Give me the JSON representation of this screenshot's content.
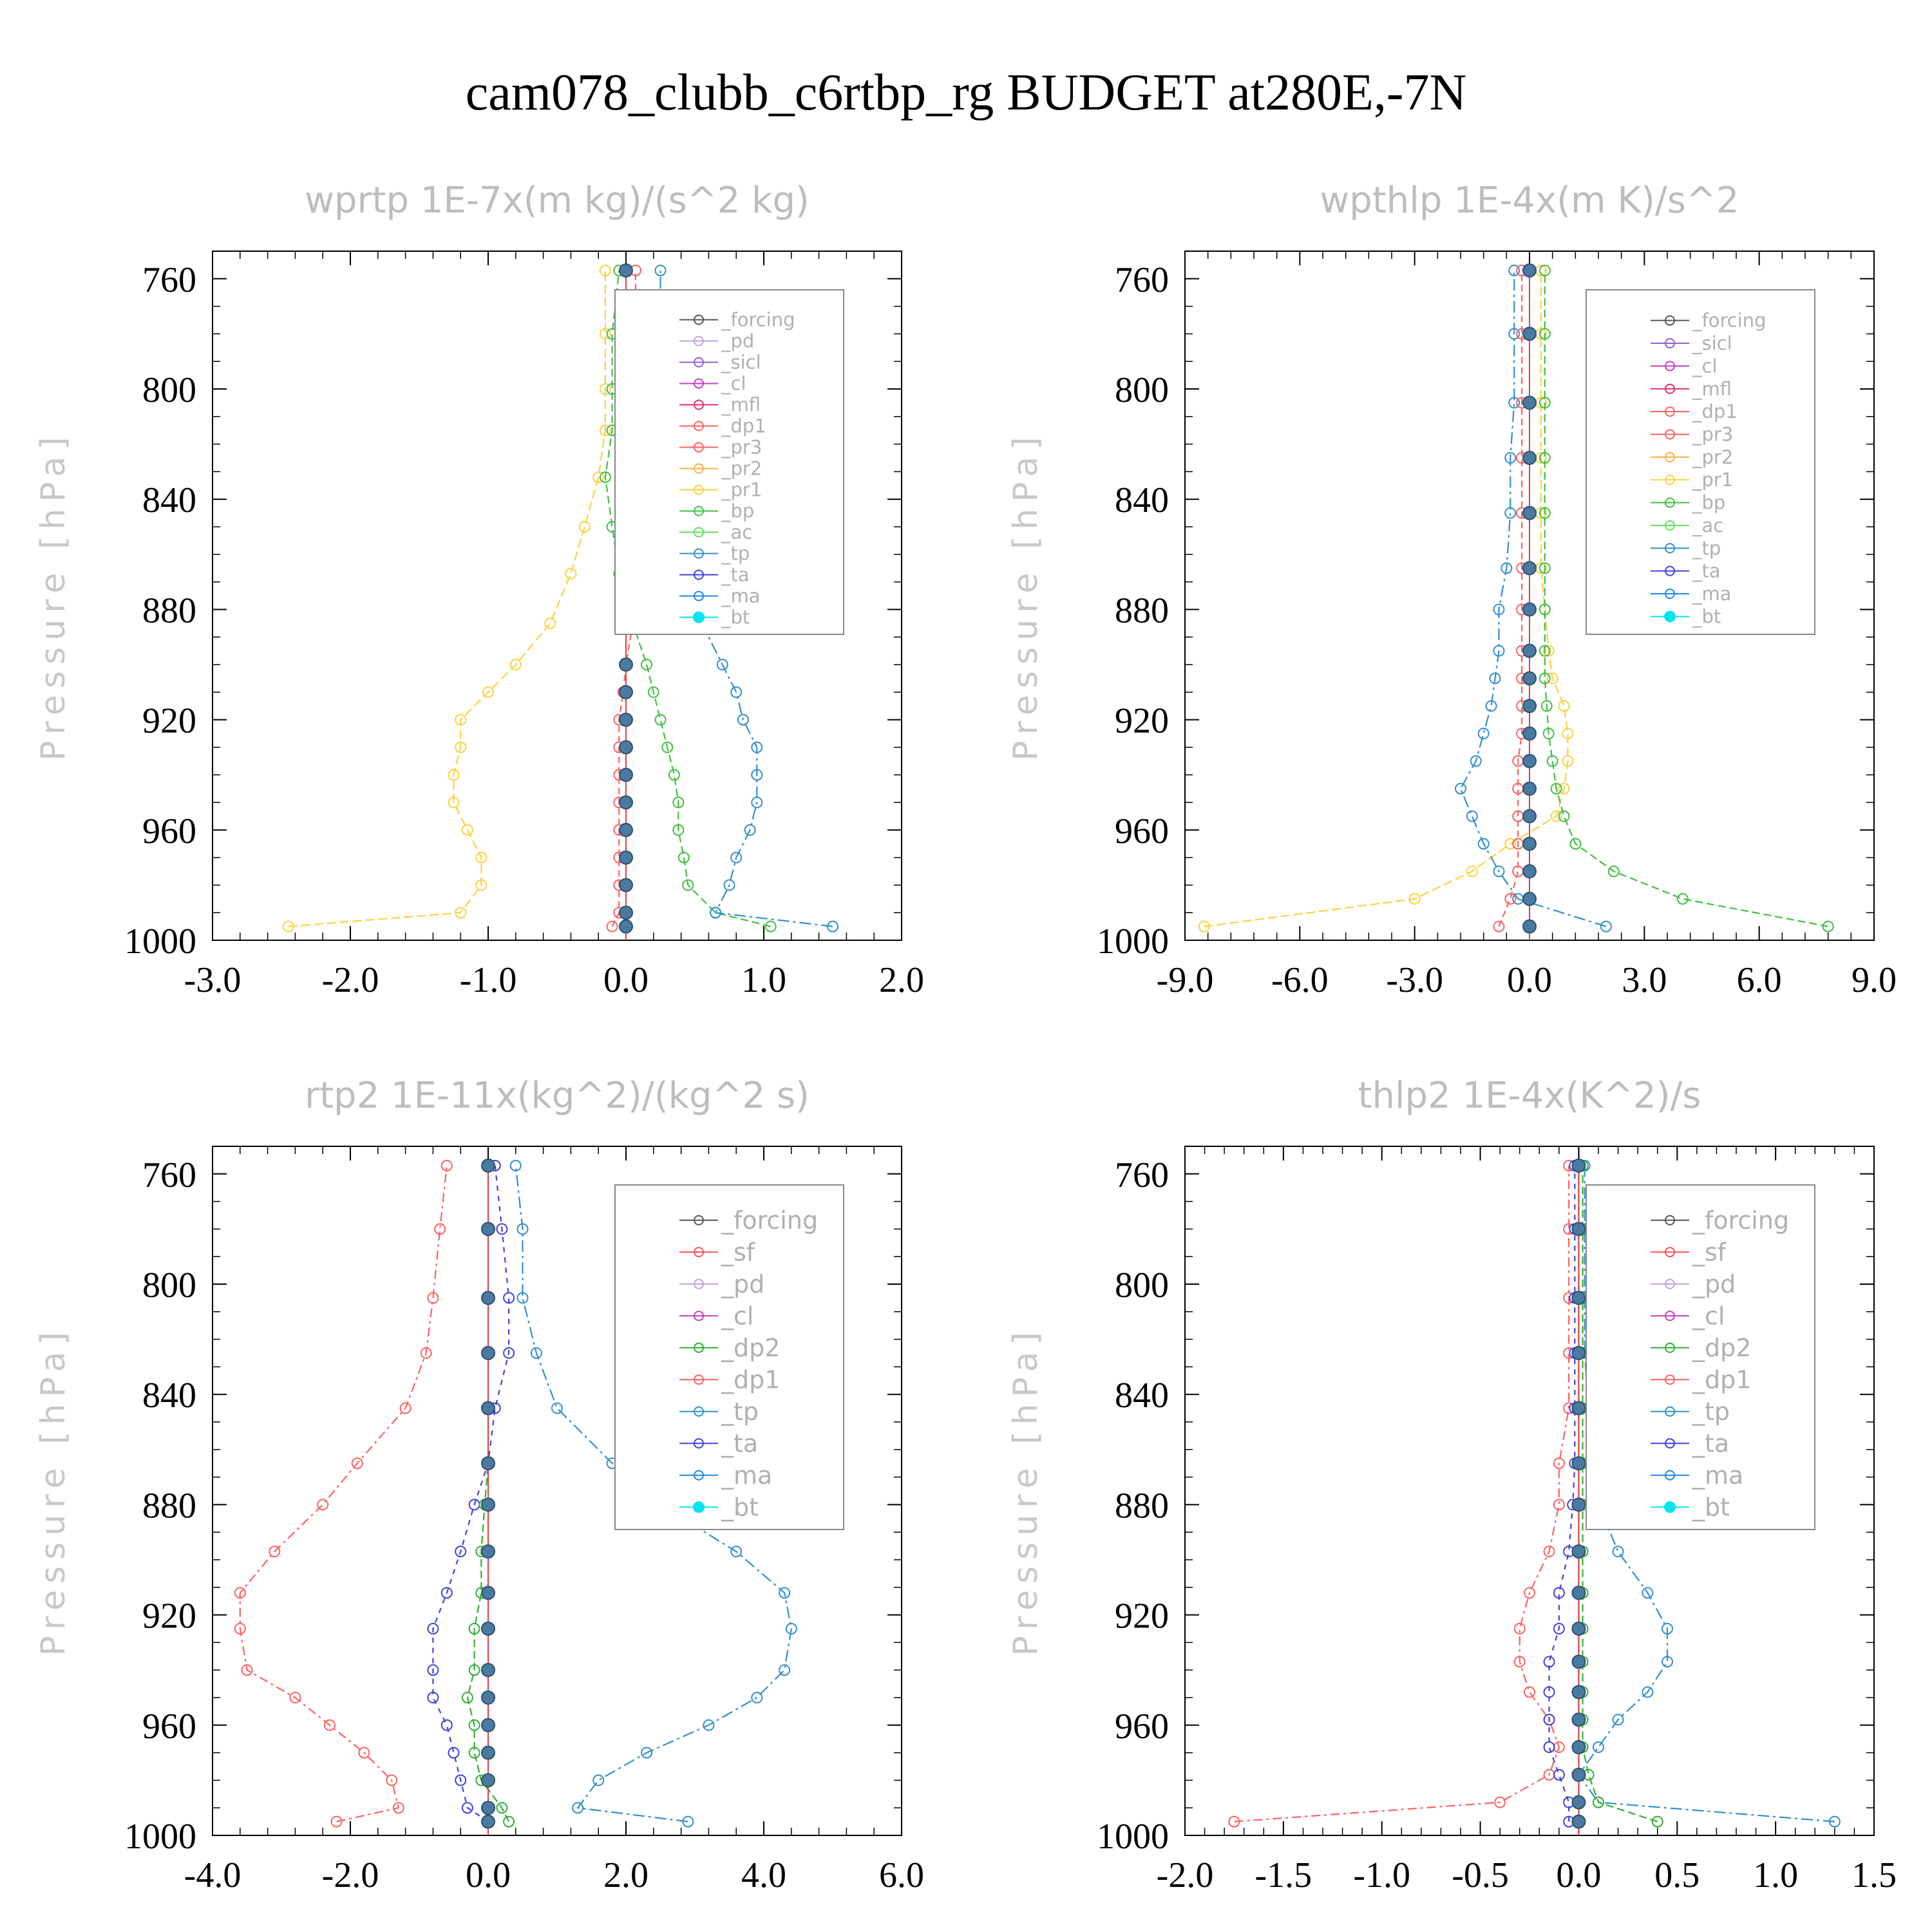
{
  "title": "cam078_clubb_c6rtbp_rg  BUDGET at280E,-7N",
  "colors": {
    "_forcing": "#555555",
    "_pd": "#c8a0e6",
    "_sicl": "#9060d0",
    "_cl": "#c040c0",
    "_mfl": "#e0306a",
    "_dp1": "#ff6060",
    "_pr3": "#ff6060",
    "_pr2": "#ffb040",
    "_pr1": "#ffd040",
    "_bp": "#40c040",
    "_ac": "#60e060",
    "_tp": "#3090d0",
    "_ta": "#4040e0",
    "_ma": "#1e88e5",
    "_bt": "#00e5ee",
    "_sf": "#ff5050",
    "_dp2": "#30b030"
  },
  "chart_data": [
    {
      "type": "line",
      "title": "wprtp  1E-7x(m kg)/(s^2 kg)",
      "ylabel": "Pressure [hPa]",
      "xlim": [
        -3.0,
        2.0
      ],
      "ylim": [
        1000,
        750
      ],
      "xticks": [
        "-3.0",
        "-2.0",
        "-1.0",
        "0.0",
        "1.0",
        "2.0"
      ],
      "yticks": [
        "760",
        "800",
        "840",
        "880",
        "920",
        "960",
        "1000"
      ],
      "legend": [
        "_forcing",
        "_pd",
        "_sicl",
        "_cl",
        "_mfl",
        "_dp1",
        "_pr3",
        "_pr2",
        "_pr1",
        "_bp",
        "_ac",
        "_tp",
        "_ta",
        "_ma",
        "_bt"
      ],
      "y": [
        995,
        990,
        980,
        970,
        960,
        950,
        940,
        930,
        920,
        910,
        900,
        885,
        867,
        850,
        832,
        815,
        800,
        780,
        757
      ],
      "series": [
        {
          "name": "_pr1",
          "values": [
            -2.45,
            -1.2,
            -1.05,
            -1.05,
            -1.15,
            -1.25,
            -1.25,
            -1.2,
            -1.2,
            -1.0,
            -0.8,
            -0.55,
            -0.4,
            -0.3,
            -0.2,
            -0.15,
            -0.15,
            -0.15,
            -0.15
          ]
        },
        {
          "name": "_bp",
          "values": [
            1.05,
            0.65,
            0.45,
            0.42,
            0.38,
            0.38,
            0.35,
            0.3,
            0.25,
            0.2,
            0.15,
            0.05,
            -0.05,
            -0.1,
            -0.15,
            -0.1,
            -0.1,
            -0.1,
            -0.05
          ]
        },
        {
          "name": "_tp",
          "values": [
            1.5,
            0.65,
            0.75,
            0.8,
            0.9,
            0.95,
            0.95,
            0.95,
            0.85,
            0.8,
            0.7,
            0.55,
            0.45,
            0.45,
            0.4,
            0.35,
            0.3,
            0.25,
            0.25
          ]
        },
        {
          "name": "_pr3",
          "values": [
            -0.1,
            -0.05,
            -0.05,
            -0.05,
            -0.05,
            -0.05,
            -0.05,
            -0.05,
            -0.05,
            -0.02,
            0.0,
            0.05,
            0.05,
            0.07,
            0.07,
            0.07,
            0.07,
            0.07,
            0.07
          ]
        },
        {
          "name": "_bt",
          "values": [
            0,
            0,
            0,
            0,
            0,
            0,
            0,
            0,
            0,
            0,
            0,
            0,
            0,
            0,
            0,
            0,
            0,
            0,
            0
          ]
        }
      ]
    },
    {
      "type": "line",
      "title": "wpthlp  1E-4x(m K)/s^2",
      "ylabel": "Pressure [hPa]",
      "xlim": [
        -9.0,
        9.0
      ],
      "ylim": [
        1000,
        750
      ],
      "xticks": [
        "-9.0",
        "-6.0",
        "-3.0",
        "0.0",
        "3.0",
        "6.0",
        "9.0"
      ],
      "yticks": [
        "760",
        "800",
        "840",
        "880",
        "920",
        "960",
        "1000"
      ],
      "legend": [
        "_forcing",
        "_sicl",
        "_cl",
        "_mfl",
        "_dp1",
        "_pr3",
        "_pr2",
        "_pr1",
        "_bp",
        "_ac",
        "_tp",
        "_ta",
        "_ma",
        "_bt"
      ],
      "y": [
        995,
        985,
        975,
        965,
        955,
        945,
        935,
        925,
        915,
        905,
        895,
        880,
        865,
        845,
        825,
        805,
        780,
        757
      ],
      "series": [
        {
          "name": "_pr1",
          "values": [
            -8.5,
            -3.0,
            -1.5,
            -0.5,
            0.7,
            0.9,
            1.0,
            1.0,
            0.9,
            0.6,
            0.5,
            0.4,
            0.3,
            0.3,
            0.3,
            0.3,
            0.3,
            0.3
          ]
        },
        {
          "name": "_bp",
          "values": [
            7.8,
            4.0,
            2.2,
            1.2,
            0.9,
            0.7,
            0.6,
            0.5,
            0.45,
            0.4,
            0.4,
            0.4,
            0.4,
            0.4,
            0.4,
            0.4,
            0.4,
            0.4
          ]
        },
        {
          "name": "_tp",
          "values": [
            2.0,
            -0.3,
            -0.8,
            -1.2,
            -1.5,
            -1.8,
            -1.4,
            -1.2,
            -1.0,
            -0.9,
            -0.8,
            -0.8,
            -0.6,
            -0.5,
            -0.5,
            -0.4,
            -0.4,
            -0.4
          ]
        },
        {
          "name": "_pr3",
          "values": [
            -0.8,
            -0.5,
            -0.3,
            -0.3,
            -0.3,
            -0.3,
            -0.3,
            -0.2,
            -0.2,
            -0.2,
            -0.2,
            -0.2,
            -0.2,
            -0.2,
            -0.2,
            -0.2,
            -0.2,
            -0.2
          ]
        },
        {
          "name": "_bt",
          "values": [
            0,
            0,
            0,
            0,
            0,
            0,
            0,
            0,
            0,
            0,
            0,
            0,
            0,
            0,
            0,
            0,
            0,
            0
          ]
        }
      ]
    },
    {
      "type": "line",
      "title": "rtp2  1E-11x(kg^2)/(kg^2 s)",
      "ylabel": "Pressure [hPa]",
      "xlim": [
        -4.0,
        6.0
      ],
      "ylim": [
        1000,
        750
      ],
      "xticks": [
        "-4.0",
        "-2.0",
        "0.0",
        "2.0",
        "4.0",
        "6.0"
      ],
      "yticks": [
        "760",
        "800",
        "840",
        "880",
        "920",
        "960",
        "1000"
      ],
      "legend": [
        "_forcing",
        "_sf",
        "_pd",
        "_cl",
        "_dp2",
        "_dp1",
        "_tp",
        "_ta",
        "_ma",
        "_bt"
      ],
      "y": [
        995,
        990,
        980,
        970,
        960,
        950,
        940,
        925,
        912,
        897,
        880,
        865,
        845,
        825,
        805,
        780,
        757
      ],
      "series": [
        {
          "name": "_dp1",
          "values": [
            -2.2,
            -1.3,
            -1.4,
            -1.8,
            -2.3,
            -2.8,
            -3.5,
            -3.6,
            -3.6,
            -3.1,
            -2.4,
            -1.9,
            -1.2,
            -0.9,
            -0.8,
            -0.7,
            -0.6
          ]
        },
        {
          "name": "_tp",
          "values": [
            2.9,
            1.3,
            1.6,
            2.3,
            3.2,
            3.9,
            4.3,
            4.4,
            4.3,
            3.6,
            2.5,
            1.8,
            1.0,
            0.7,
            0.5,
            0.5,
            0.4
          ]
        },
        {
          "name": "_ta",
          "values": [
            0.0,
            -0.3,
            -0.4,
            -0.5,
            -0.6,
            -0.8,
            -0.8,
            -0.8,
            -0.6,
            -0.4,
            -0.2,
            0.0,
            0.1,
            0.3,
            0.3,
            0.2,
            0.1
          ]
        },
        {
          "name": "_dp2",
          "values": [
            0.3,
            0.2,
            -0.1,
            -0.2,
            -0.2,
            -0.3,
            -0.2,
            -0.2,
            -0.1,
            -0.1,
            -0.05,
            0,
            0,
            0,
            0,
            0,
            0
          ]
        },
        {
          "name": "_bt",
          "values": [
            0,
            0,
            0,
            0,
            0,
            0,
            0,
            0,
            0,
            0,
            0,
            0,
            0,
            0,
            0,
            0,
            0
          ]
        }
      ]
    },
    {
      "type": "line",
      "title": "thlp2  1E-4x(K^2)/s",
      "ylabel": "Pressure [hPa]",
      "xlim": [
        -2.0,
        1.5
      ],
      "ylim": [
        1000,
        750
      ],
      "xticks": [
        "-2.0",
        "-1.5",
        "-1.0",
        "-0.5",
        "0.0",
        "0.5",
        "1.0",
        "1.5"
      ],
      "yticks": [
        "760",
        "800",
        "840",
        "880",
        "920",
        "960",
        "1000"
      ],
      "legend": [
        "_forcing",
        "_sf",
        "_pd",
        "_cl",
        "_dp2",
        "_dp1",
        "_tp",
        "_ta",
        "_ma",
        "_bt"
      ],
      "y": [
        995,
        988,
        978,
        968,
        958,
        948,
        937,
        925,
        912,
        897,
        880,
        865,
        845,
        825,
        805,
        780,
        757
      ],
      "series": [
        {
          "name": "_dp1",
          "values": [
            -1.75,
            -0.4,
            -0.15,
            -0.1,
            -0.15,
            -0.25,
            -0.3,
            -0.3,
            -0.25,
            -0.15,
            -0.1,
            -0.1,
            -0.05,
            -0.05,
            -0.05,
            -0.05,
            -0.05
          ]
        },
        {
          "name": "_tp",
          "values": [
            1.3,
            0.1,
            0.0,
            0.1,
            0.2,
            0.35,
            0.45,
            0.45,
            0.35,
            0.2,
            0.1,
            0.05,
            0.05,
            0.03,
            0.03,
            0.03,
            0.03
          ]
        },
        {
          "name": "_ta",
          "values": [
            -0.05,
            -0.05,
            -0.1,
            -0.15,
            -0.15,
            -0.15,
            -0.15,
            -0.1,
            -0.1,
            -0.05,
            -0.03,
            -0.02,
            -0.02,
            -0.02,
            -0.02,
            -0.02,
            -0.02
          ]
        },
        {
          "name": "_dp2",
          "values": [
            0.4,
            0.1,
            0.05,
            0.02,
            0.02,
            0.02,
            0.02,
            0.02,
            0.02,
            0.02,
            0.02,
            0.02,
            0.02,
            0.02,
            0.02,
            0.02,
            0.02
          ]
        },
        {
          "name": "_bt",
          "values": [
            0,
            0,
            0,
            0,
            0,
            0,
            0,
            0,
            0,
            0,
            0,
            0,
            0,
            0,
            0,
            0,
            0
          ]
        }
      ]
    }
  ]
}
